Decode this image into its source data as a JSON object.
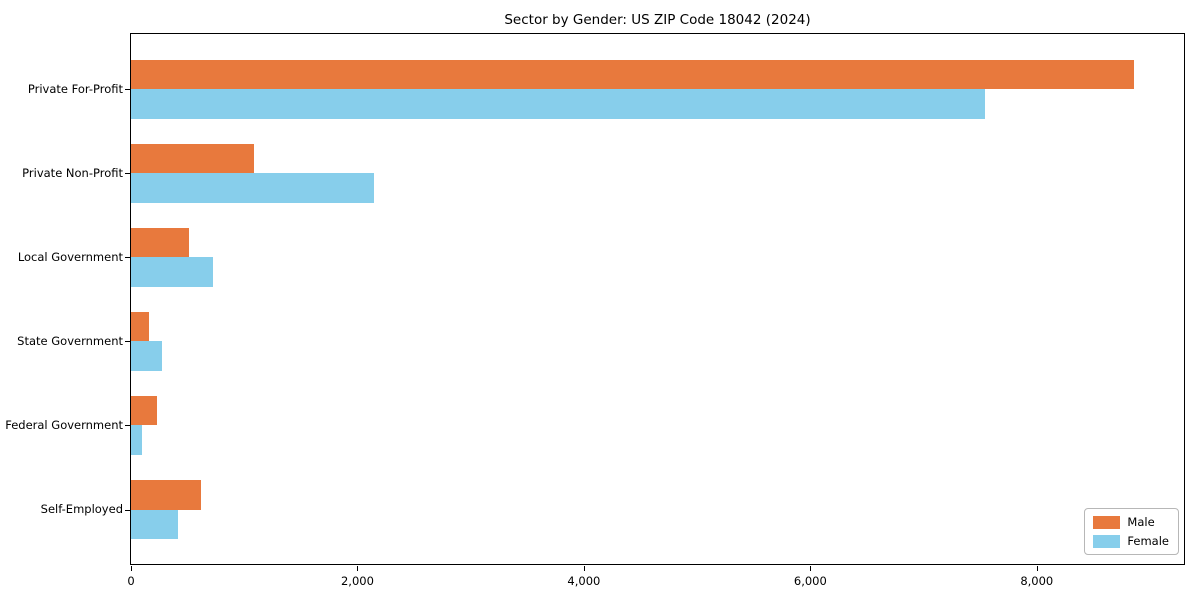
{
  "title": "Sector by Gender: US ZIP Code 18042 (2024)",
  "chart_data": {
    "type": "bar",
    "orientation": "horizontal",
    "title": "Sector by Gender: US ZIP Code 18042 (2024)",
    "categories": [
      "Private For-Profit",
      "Private Non-Profit",
      "Local Government",
      "State Government",
      "Federal Government",
      "Self-Employed"
    ],
    "series": [
      {
        "name": "Male",
        "color": "#e8793d",
        "values": [
          8860,
          1085,
          510,
          160,
          230,
          615
        ]
      },
      {
        "name": "Female",
        "color": "#87ceeb",
        "values": [
          7540,
          2150,
          720,
          270,
          95,
          415
        ]
      }
    ],
    "xlabel": "",
    "ylabel": "",
    "xlim": [
      0,
      9300
    ],
    "xticks": [
      0,
      2000,
      4000,
      6000,
      8000
    ],
    "xtick_labels": [
      "0",
      "2,000",
      "4,000",
      "6,000",
      "8,000"
    ],
    "grid": false,
    "legend": {
      "position": "lower right",
      "entries": [
        "Male",
        "Female"
      ]
    }
  },
  "colors": {
    "male": "#e8793d",
    "female": "#87ceeb",
    "spine": "#000000",
    "background": "#ffffff",
    "legend_border": "#b7b7b7"
  }
}
